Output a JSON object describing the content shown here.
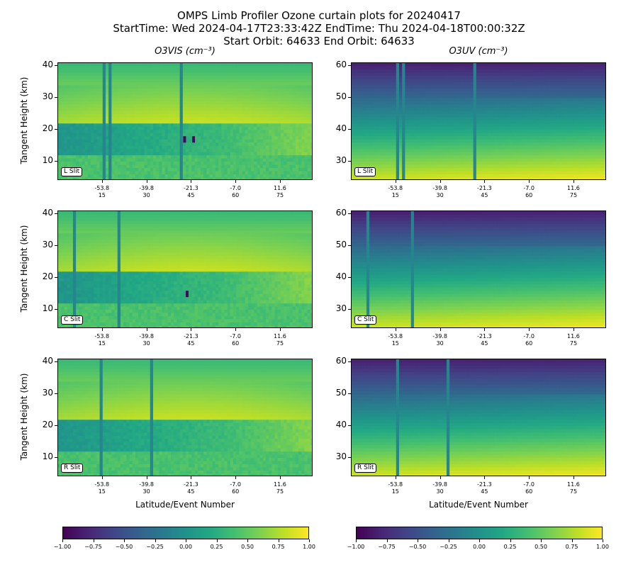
{
  "title": {
    "line1": "OMPS Limb Profiler Ozone curtain plots for 20240417",
    "line2": "StartTime: Wed 2024-04-17T23:33:42Z  EndTime: Thu 2024-04-18T00:00:32Z",
    "line3": "Start Orbit: 64633 End Orbit: 64633"
  },
  "columns": {
    "left_title": "O3VIS (cm⁻³)",
    "right_title": "O3UV (cm⁻³)"
  },
  "ylabel": "Tangent Height (km)",
  "xlabel": "Latitude/Event Number",
  "slits": [
    "L Slit",
    "C Slit",
    "R Slit"
  ],
  "colors": {
    "viridis_low": "#440154",
    "viridis_mid": "#21918c",
    "viridis_high": "#fde725"
  },
  "chart_data": [
    {
      "type": "heatmap",
      "name": "O3VIS",
      "colormap": "viridis",
      "clim": [
        -1.0,
        1.0
      ],
      "ylim": [
        4,
        41
      ],
      "yticks": [
        "10",
        "20",
        "30",
        "40"
      ],
      "xticks": [
        {
          "lat": "-53.8",
          "event": "15"
        },
        {
          "lat": "-39.8",
          "event": "30"
        },
        {
          "lat": "-21.3",
          "event": "45"
        },
        {
          "lat": "-7.0",
          "event": "60"
        },
        {
          "lat": "11.6",
          "event": "75"
        }
      ],
      "xticks_event": [
        15,
        30,
        45,
        60,
        75
      ],
      "event_range": [
        0,
        86
      ],
      "rows": [
        {
          "slit": "L Slit",
          "bad_events": [
            15,
            17,
            41
          ]
        },
        {
          "slit": "C Slit",
          "bad_events": [
            5,
            20
          ]
        },
        {
          "slit": "R Slit",
          "bad_events": [
            14,
            31
          ]
        }
      ]
    },
    {
      "type": "heatmap",
      "name": "O3UV",
      "colormap": "viridis",
      "clim": [
        -1.0,
        1.0
      ],
      "ylim": [
        24,
        61
      ],
      "yticks": [
        "30",
        "40",
        "50",
        "60"
      ],
      "xticks": [
        {
          "lat": "-53.8",
          "event": "15"
        },
        {
          "lat": "-39.8",
          "event": "30"
        },
        {
          "lat": "-21.3",
          "event": "45"
        },
        {
          "lat": "-7.0",
          "event": "60"
        },
        {
          "lat": "11.6",
          "event": "75"
        }
      ],
      "xticks_event": [
        15,
        30,
        45,
        60,
        75
      ],
      "event_range": [
        0,
        86
      ],
      "rows": [
        {
          "slit": "L Slit",
          "bad_events": [
            15,
            17,
            41
          ]
        },
        {
          "slit": "C Slit",
          "bad_events": [
            5,
            20
          ]
        },
        {
          "slit": "R Slit",
          "bad_events": [
            15,
            32
          ]
        }
      ]
    }
  ],
  "colorbar": {
    "range": [
      -1.0,
      1.0
    ],
    "ticks": [
      "−1.00",
      "−0.75",
      "−0.50",
      "−0.25",
      "0.00",
      "0.25",
      "0.50",
      "0.75",
      "1.00"
    ]
  }
}
